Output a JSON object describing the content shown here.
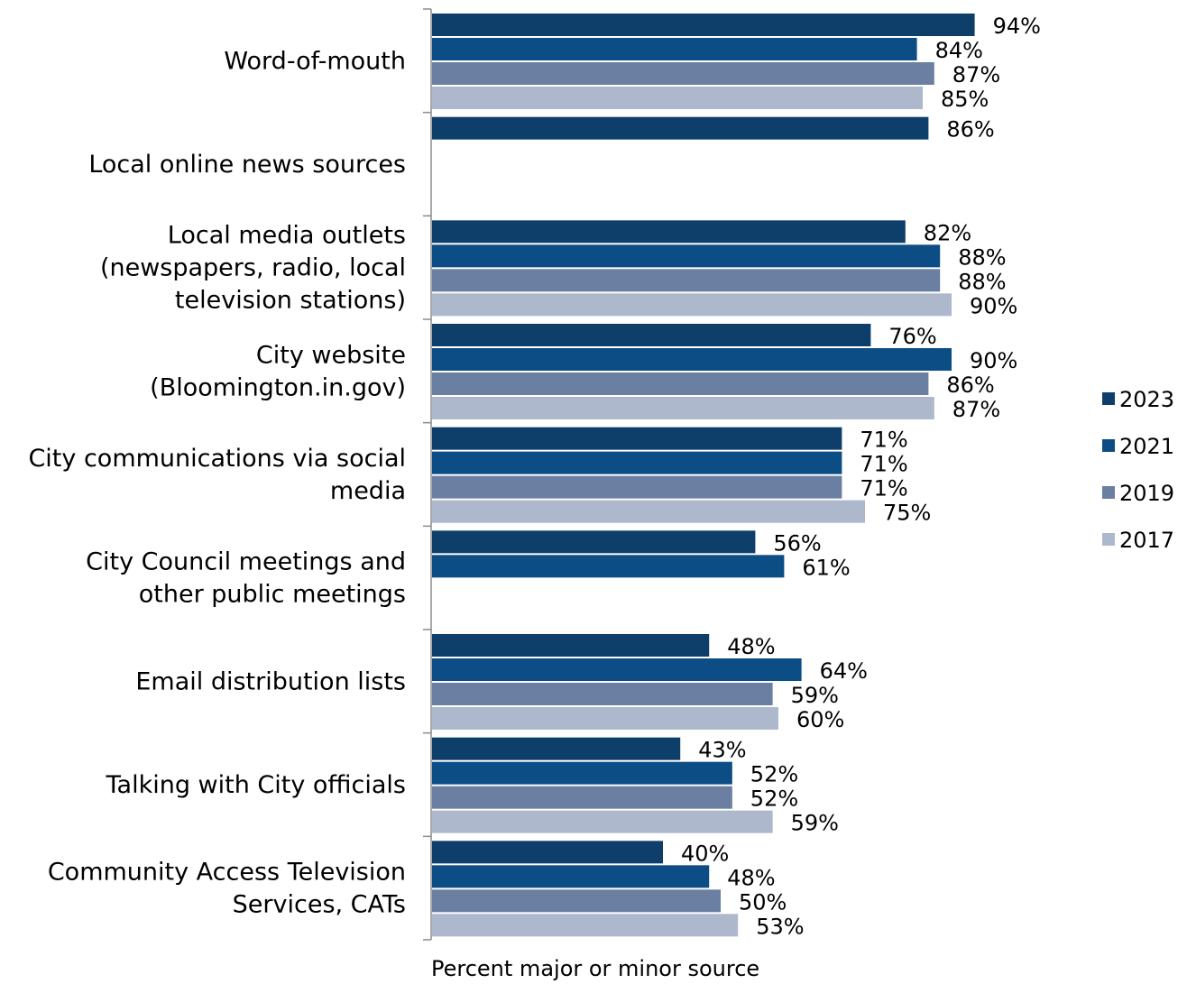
{
  "chart_data": {
    "type": "bar",
    "orientation": "horizontal",
    "xlabel": "Percent major or minor source",
    "ylabel": "",
    "xlim": [
      0,
      100
    ],
    "grid": false,
    "legend_position": "right",
    "value_suffix": "%",
    "categories": [
      [
        "Word-of-mouth"
      ],
      [
        "Local online news sources"
      ],
      [
        "Local media outlets",
        "(newspapers, radio, local",
        "television stations)"
      ],
      [
        "City website",
        "(Bloomington.in.gov)"
      ],
      [
        "City communications via social",
        "media"
      ],
      [
        "City Council meetings and",
        "other public meetings"
      ],
      [
        "Email distribution lists"
      ],
      [
        "Talking with City officials"
      ],
      [
        "Community Access Television",
        "Services, CATs"
      ]
    ],
    "series": [
      {
        "name": "2023",
        "color": "#0e3f6b",
        "values": [
          94,
          86,
          82,
          76,
          71,
          56,
          48,
          43,
          40
        ]
      },
      {
        "name": "2021",
        "color": "#0d4d85",
        "values": [
          84,
          null,
          88,
          90,
          71,
          61,
          64,
          52,
          48
        ]
      },
      {
        "name": "2019",
        "color": "#6a7fa1",
        "values": [
          87,
          null,
          88,
          86,
          71,
          null,
          59,
          52,
          50
        ]
      },
      {
        "name": "2017",
        "color": "#adb8cc",
        "values": [
          85,
          null,
          90,
          87,
          75,
          null,
          60,
          59,
          53
        ]
      }
    ]
  }
}
